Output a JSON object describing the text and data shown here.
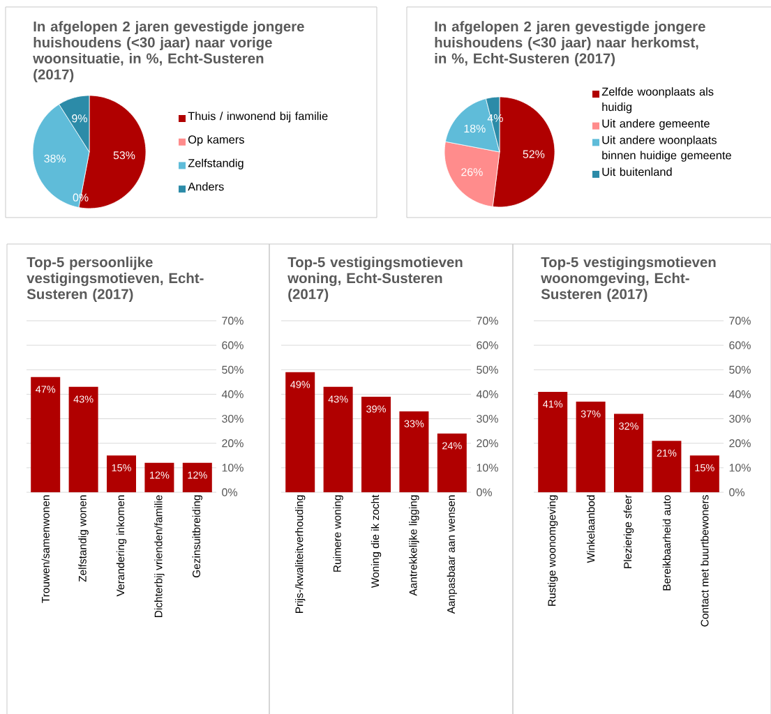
{
  "chart_data": [
    {
      "type": "pie",
      "title": "In afgelopen 2 jaren gevestigde jongere huishoudens (<30 jaar) naar vorige woonsituatie, in %, Echt-Susteren (2017)",
      "categories": [
        "Thuis / inwonend bij familie",
        "Op kamers",
        "Zelfstandig",
        "Anders"
      ],
      "values": [
        53,
        0,
        38,
        9
      ],
      "colors": [
        "#b00000",
        "#ff8c8c",
        "#5fbcd9",
        "#2c8ba8"
      ],
      "value_labels": [
        "53%",
        "0%",
        "38%",
        "9%"
      ],
      "legend": "right"
    },
    {
      "type": "pie",
      "title": "In afgelopen 2 jaren gevestigde jongere huishoudens (<30 jaar) naar herkomst, in %, Echt-Susteren (2017)",
      "categories": [
        "Zelfde woonplaats als huidig",
        "Uit andere gemeente",
        "Uit andere woonplaats binnen huidige gemeente",
        "Uit buitenland"
      ],
      "values": [
        52,
        26,
        18,
        4
      ],
      "colors": [
        "#b00000",
        "#ff8c8c",
        "#5fbcd9",
        "#2c8ba8"
      ],
      "value_labels": [
        "52%",
        "26%",
        "18%",
        "4%"
      ],
      "legend": "right"
    },
    {
      "type": "bar",
      "title": "Top-5 persoonlijke vestigingsmotieven, Echt-Susteren (2017)",
      "categories": [
        "Trouwen/samenwonen",
        "Zelfstandig wonen",
        "Verandering inkomen",
        "Dichterbij vrienden/familie",
        "Gezinsuitbreiding"
      ],
      "values": [
        47,
        43,
        15,
        12,
        12
      ],
      "color": "#b00000",
      "value_labels": [
        "47%",
        "43%",
        "15%",
        "12%",
        "12%"
      ],
      "ylim": [
        0,
        70
      ],
      "yticks": [
        {
          "value": 0,
          "label": "0%"
        },
        {
          "value": 10,
          "label": "10%"
        },
        {
          "value": 20,
          "label": "20%"
        },
        {
          "value": 30,
          "label": "30%"
        },
        {
          "value": 40,
          "label": "40%"
        },
        {
          "value": 50,
          "label": "50%"
        },
        {
          "value": 60,
          "label": "60%"
        },
        {
          "value": 70,
          "label": "70%"
        }
      ],
      "grid": "y"
    },
    {
      "type": "bar",
      "title": "Top-5 vestigingsmotieven woning, Echt-Susteren (2017)",
      "categories": [
        "Prijs-/kwaliteitverhouding",
        "Ruimere woning",
        "Woning die ik zocht",
        "Aantrekkelijke ligging",
        "Aanpasbaar aan wensen"
      ],
      "values": [
        49,
        43,
        39,
        33,
        24
      ],
      "color": "#b00000",
      "value_labels": [
        "49%",
        "43%",
        "39%",
        "33%",
        "24%"
      ],
      "ylim": [
        0,
        70
      ],
      "yticks": [
        {
          "value": 0,
          "label": "0%"
        },
        {
          "value": 10,
          "label": "10%"
        },
        {
          "value": 20,
          "label": "20%"
        },
        {
          "value": 30,
          "label": "30%"
        },
        {
          "value": 40,
          "label": "40%"
        },
        {
          "value": 50,
          "label": "50%"
        },
        {
          "value": 60,
          "label": "60%"
        },
        {
          "value": 70,
          "label": "70%"
        }
      ],
      "grid": "y"
    },
    {
      "type": "bar",
      "title": "Top-5 vestigingsmotieven woonomgeving, Echt-Susteren (2017)",
      "categories": [
        "Rustige woonomgeving",
        "Winkelaanbod",
        "Plezierige sfeer",
        "Bereikbaarheid auto",
        "Contact met buurtbewoners"
      ],
      "values": [
        41,
        37,
        32,
        21,
        15
      ],
      "color": "#b00000",
      "value_labels": [
        "41%",
        "37%",
        "32%",
        "21%",
        "15%"
      ],
      "ylim": [
        0,
        70
      ],
      "yticks": [
        {
          "value": 0,
          "label": "0%"
        },
        {
          "value": 10,
          "label": "10%"
        },
        {
          "value": 20,
          "label": "20%"
        },
        {
          "value": 30,
          "label": "30%"
        },
        {
          "value": 40,
          "label": "40%"
        },
        {
          "value": 50,
          "label": "50%"
        },
        {
          "value": 60,
          "label": "60%"
        },
        {
          "value": 70,
          "label": "70%"
        }
      ],
      "grid": "y"
    }
  ]
}
